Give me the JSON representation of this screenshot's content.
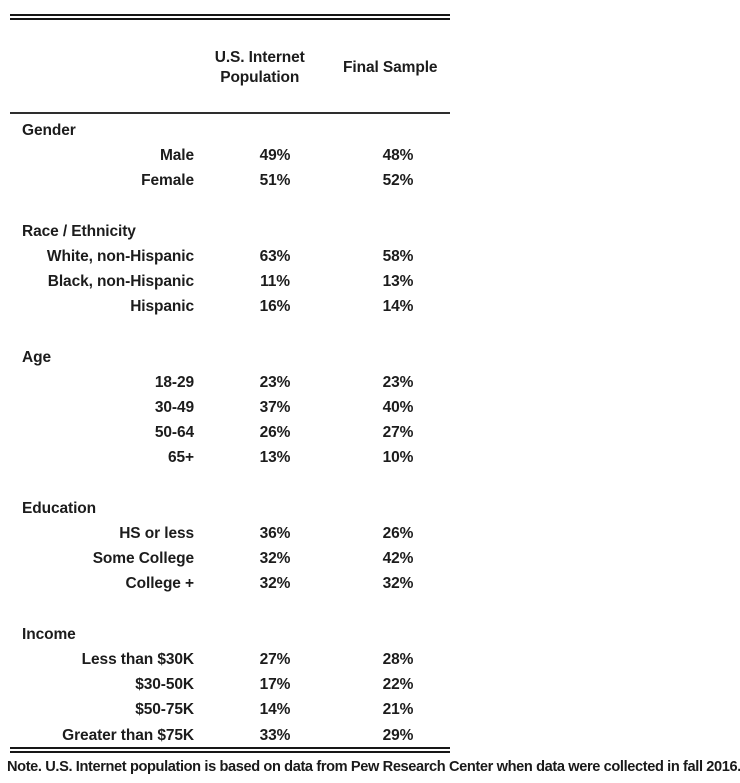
{
  "colors": {
    "background": "#ffffff",
    "text": "#1c1c1c",
    "rule": "#161616"
  },
  "table": {
    "columns": [
      "U.S. Internet Population",
      "Final Sample"
    ],
    "sections": [
      {
        "header": "Gender",
        "rows": [
          {
            "label": "Male",
            "values": [
              "49%",
              "48%"
            ]
          },
          {
            "label": "Female",
            "values": [
              "51%",
              "52%"
            ]
          }
        ]
      },
      {
        "header": "Race / Ethnicity",
        "rows": [
          {
            "label": "White, non-Hispanic",
            "values": [
              "63%",
              "58%"
            ]
          },
          {
            "label": "Black, non-Hispanic",
            "values": [
              "11%",
              "13%"
            ]
          },
          {
            "label": "Hispanic",
            "values": [
              "16%",
              "14%"
            ]
          }
        ]
      },
      {
        "header": "Age",
        "rows": [
          {
            "label": "18-29",
            "values": [
              "23%",
              "23%"
            ]
          },
          {
            "label": "30-49",
            "values": [
              "37%",
              "40%"
            ]
          },
          {
            "label": "50-64",
            "values": [
              "26%",
              "27%"
            ]
          },
          {
            "label": "65+",
            "values": [
              "13%",
              "10%"
            ]
          }
        ]
      },
      {
        "header": "Education",
        "rows": [
          {
            "label": "HS or less",
            "values": [
              "36%",
              "26%"
            ]
          },
          {
            "label": "Some College",
            "values": [
              "32%",
              "42%"
            ]
          },
          {
            "label": "College +",
            "values": [
              "32%",
              "32%"
            ]
          }
        ]
      },
      {
        "header": "Income",
        "rows": [
          {
            "label": "Less than $30K",
            "values": [
              "27%",
              "28%"
            ]
          },
          {
            "label": "$30-50K",
            "values": [
              "17%",
              "22%"
            ]
          },
          {
            "label": "$50-75K",
            "values": [
              "14%",
              "21%"
            ]
          },
          {
            "label": "Greater than $75K",
            "values": [
              "33%",
              "29%"
            ]
          }
        ]
      }
    ]
  },
  "note": "Note. U.S. Internet population is based on data from Pew Research Center when data were collected in fall 2016."
}
